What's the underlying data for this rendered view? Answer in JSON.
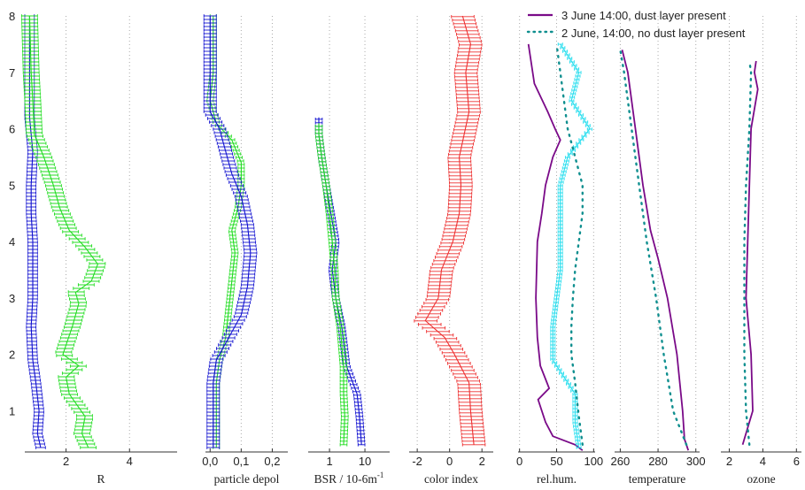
{
  "colors": {
    "blue": "#1010d0",
    "green": "#22dd22",
    "red": "#ee3030",
    "cyan": "#22ddee",
    "purple": "#7a0a88",
    "teal": "#0f8f8f",
    "grid": "#aaaaaa"
  },
  "legend": {
    "series1_label": "3 June 14:00, dust layer present",
    "series2_label": "2 June, 14:00, no dust layer present"
  },
  "chart_data": {
    "type": "line",
    "shared_y_axis": {
      "ticks": [
        "8",
        "7",
        "6",
        "5",
        "4",
        "3",
        "2",
        "1"
      ]
    },
    "panels": [
      {
        "id": "R",
        "xlabel": "R",
        "xlim": [
          0.7,
          5.5
        ],
        "xticks": [
          2,
          4
        ],
        "xtick_labels": [
          "2",
          "4"
        ],
        "series": [
          {
            "color": "blue",
            "errorbars": true,
            "err": 0.15,
            "points": [
              [
                1.2,
                0.35
              ],
              [
                1.1,
                0.6
              ],
              [
                1.15,
                1.0
              ],
              [
                1.05,
                1.5
              ],
              [
                0.95,
                1.9
              ],
              [
                0.9,
                2.5
              ],
              [
                0.95,
                3.0
              ],
              [
                0.95,
                3.5
              ],
              [
                0.95,
                4.0
              ],
              [
                0.9,
                4.5
              ],
              [
                0.9,
                5.0
              ],
              [
                0.95,
                5.6
              ],
              [
                0.85,
                6.2
              ],
              [
                0.85,
                7.0
              ],
              [
                0.85,
                8.0
              ]
            ]
          },
          {
            "color": "green",
            "errorbars": true,
            "err": 0.25,
            "points": [
              [
                2.7,
                0.35
              ],
              [
                2.5,
                0.6
              ],
              [
                2.6,
                0.9
              ],
              [
                2.1,
                1.3
              ],
              [
                2.0,
                1.6
              ],
              [
                2.4,
                1.8
              ],
              [
                1.9,
                2.0
              ],
              [
                2.2,
                2.5
              ],
              [
                2.4,
                2.9
              ],
              [
                2.3,
                3.1
              ],
              [
                2.8,
                3.3
              ],
              [
                3.0,
                3.6
              ],
              [
                2.6,
                3.9
              ],
              [
                2.1,
                4.2
              ],
              [
                1.8,
                4.6
              ],
              [
                1.6,
                5.0
              ],
              [
                1.3,
                5.5
              ],
              [
                1.0,
                5.9
              ],
              [
                0.95,
                6.5
              ],
              [
                0.9,
                7.0
              ],
              [
                0.85,
                8.0
              ]
            ]
          }
        ]
      },
      {
        "id": "particle-depol",
        "xlabel": "particle depol",
        "xlim": [
          -0.015,
          0.25
        ],
        "xticks": [
          0.0,
          0.1,
          0.2
        ],
        "xtick_labels": [
          "0,0",
          "0,1",
          "0,2"
        ],
        "series": [
          {
            "color": "green",
            "errorbars": true,
            "err": 0.01,
            "points": [
              [
                0.02,
                0.35
              ],
              [
                0.02,
                0.8
              ],
              [
                0.02,
                1.5
              ],
              [
                0.03,
                1.9
              ],
              [
                0.05,
                2.3
              ],
              [
                0.06,
                2.8
              ],
              [
                0.07,
                3.3
              ],
              [
                0.08,
                3.8
              ],
              [
                0.07,
                4.2
              ],
              [
                0.09,
                4.6
              ],
              [
                0.1,
                5.0
              ],
              [
                0.1,
                5.4
              ],
              [
                0.07,
                5.8
              ],
              [
                0.02,
                6.1
              ],
              [
                0.0,
                6.5
              ],
              [
                0.01,
                7.0
              ],
              [
                0.01,
                8.0
              ]
            ]
          },
          {
            "color": "blue",
            "errorbars": true,
            "err": 0.02,
            "points": [
              [
                0.01,
                0.35
              ],
              [
                0.01,
                0.8
              ],
              [
                0.01,
                1.5
              ],
              [
                0.02,
                1.9
              ],
              [
                0.05,
                2.2
              ],
              [
                0.1,
                2.7
              ],
              [
                0.12,
                3.2
              ],
              [
                0.13,
                3.8
              ],
              [
                0.12,
                4.3
              ],
              [
                0.1,
                4.8
              ],
              [
                0.07,
                5.2
              ],
              [
                0.05,
                5.6
              ],
              [
                0.03,
                6.0
              ],
              [
                0.0,
                6.3
              ],
              [
                0.0,
                7.0
              ],
              [
                0.0,
                8.0
              ]
            ]
          }
        ]
      },
      {
        "id": "BSR",
        "xlabel": "BSR / 10-6m",
        "xlabel_sup": "-1",
        "xlim": [
          0.25,
          50
        ],
        "xscale": "log",
        "xticks": [
          1,
          10
        ],
        "xtick_labels": [
          "1",
          "10"
        ],
        "series": [
          {
            "color": "blue",
            "errorbars": true,
            "err": 0.06,
            "points": [
              [
                8,
                0.4
              ],
              [
                7,
                0.9
              ],
              [
                6,
                1.3
              ],
              [
                3,
                1.8
              ],
              [
                2.2,
                2.5
              ],
              [
                1.5,
                3.0
              ],
              [
                1.2,
                3.5
              ],
              [
                1.5,
                4.0
              ],
              [
                1.1,
                4.5
              ],
              [
                0.8,
                5.0
              ],
              [
                0.6,
                5.5
              ],
              [
                0.5,
                5.9
              ],
              [
                0.5,
                6.2
              ]
            ]
          },
          {
            "color": "green",
            "errorbars": true,
            "err": 0.06,
            "points": [
              [
                2.5,
                0.4
              ],
              [
                2.7,
                0.9
              ],
              [
                2.5,
                1.3
              ],
              [
                2.5,
                1.8
              ],
              [
                2.0,
                2.5
              ],
              [
                1.5,
                3.0
              ],
              [
                1.4,
                3.5
              ],
              [
                1.2,
                4.0
              ],
              [
                1.0,
                4.5
              ],
              [
                0.8,
                5.0
              ],
              [
                0.6,
                5.5
              ],
              [
                0.5,
                5.9
              ],
              [
                0.5,
                6.1
              ]
            ]
          }
        ]
      },
      {
        "id": "color-index",
        "xlabel": "color index",
        "xlim": [
          -2.5,
          2.7
        ],
        "xticks": [
          -2,
          0,
          2
        ],
        "xtick_labels": [
          "-2",
          "0",
          "2"
        ],
        "series": [
          {
            "color": "red",
            "errorbars": true,
            "err": 0.7,
            "points": [
              [
                1.5,
                0.4
              ],
              [
                1.3,
                1.0
              ],
              [
                1.2,
                1.5
              ],
              [
                0.3,
                2.0
              ],
              [
                -0.3,
                2.3
              ],
              [
                -1.5,
                2.6
              ],
              [
                -0.7,
                3.0
              ],
              [
                -0.5,
                3.5
              ],
              [
                0.2,
                4.0
              ],
              [
                0.6,
                4.5
              ],
              [
                0.7,
                5.0
              ],
              [
                0.6,
                5.5
              ],
              [
                0.9,
                5.9
              ],
              [
                1.2,
                6.3
              ],
              [
                1.0,
                7.0
              ],
              [
                1.3,
                7.5
              ],
              [
                0.8,
                8.0
              ]
            ]
          }
        ]
      },
      {
        "id": "rel-hum",
        "xlabel": "rel.hum.",
        "xlim": [
          -2,
          102
        ],
        "xticks": [
          0,
          50,
          100
        ],
        "xtick_labels": [
          "0",
          "50",
          "100"
        ],
        "series": [
          {
            "color": "purple",
            "points": [
              [
                85,
                0.3
              ],
              [
                75,
                0.4
              ],
              [
                45,
                0.55
              ],
              [
                35,
                0.8
              ],
              [
                25,
                1.2
              ],
              [
                40,
                1.4
              ],
              [
                28,
                1.8
              ],
              [
                24,
                2.3
              ],
              [
                22,
                3.0
              ],
              [
                24,
                4.0
              ],
              [
                30,
                4.5
              ],
              [
                35,
                5.0
              ],
              [
                45,
                5.5
              ],
              [
                55,
                5.8
              ],
              [
                48,
                6.0
              ],
              [
                38,
                6.3
              ],
              [
                20,
                6.8
              ],
              [
                12,
                7.5
              ]
            ]
          },
          {
            "color": "cyan",
            "errorbars": true,
            "err": 3,
            "points": [
              [
                80,
                0.35
              ],
              [
                75,
                0.8
              ],
              [
                75,
                1.3
              ],
              [
                45,
                1.9
              ],
              [
                45,
                2.5
              ],
              [
                50,
                3.0
              ],
              [
                55,
                3.5
              ],
              [
                55,
                4.0
              ],
              [
                55,
                4.5
              ],
              [
                55,
                5.0
              ],
              [
                65,
                5.5
              ],
              [
                95,
                6.0
              ],
              [
                70,
                6.5
              ],
              [
                80,
                7.0
              ],
              [
                55,
                7.5
              ]
            ]
          },
          {
            "color": "teal",
            "dotted": true,
            "points": [
              [
                85,
                0.4
              ],
              [
                80,
                0.9
              ],
              [
                75,
                1.5
              ],
              [
                70,
                2.0
              ],
              [
                70,
                2.5
              ],
              [
                72,
                3.0
              ],
              [
                75,
                3.5
              ],
              [
                80,
                4.0
              ],
              [
                85,
                4.5
              ],
              [
                85,
                5.0
              ],
              [
                75,
                5.5
              ],
              [
                65,
                6.0
              ],
              [
                55,
                7.0
              ],
              [
                50,
                7.5
              ]
            ]
          }
        ]
      },
      {
        "id": "temperature",
        "xlabel": "temperature",
        "xlim": [
          257,
          302
        ],
        "xticks": [
          260,
          280,
          300
        ],
        "xtick_labels": [
          "260",
          "280",
          "300"
        ],
        "series": [
          {
            "color": "purple",
            "points": [
              [
                296,
                0.3
              ],
              [
                294,
                0.5
              ],
              [
                293,
                1.0
              ],
              [
                290,
                2.0
              ],
              [
                285,
                3.0
              ],
              [
                280,
                3.7
              ],
              [
                276,
                4.2
              ],
              [
                272,
                5.0
              ],
              [
                268,
                6.0
              ],
              [
                264,
                7.0
              ],
              [
                261,
                7.4
              ]
            ]
          },
          {
            "color": "teal",
            "dotted": true,
            "points": [
              [
                295,
                0.4
              ],
              [
                288,
                1.0
              ],
              [
                283,
                2.0
              ],
              [
                279,
                3.0
              ],
              [
                274,
                4.0
              ],
              [
                270,
                5.0
              ],
              [
                266,
                6.0
              ],
              [
                262,
                7.0
              ],
              [
                260,
                7.4
              ]
            ]
          }
        ]
      },
      {
        "id": "ozone",
        "xlabel": "ozone",
        "xlim": [
          1.5,
          6.3
        ],
        "xticks": [
          2,
          4,
          6
        ],
        "xtick_labels": [
          "2",
          "4",
          "6"
        ],
        "series": [
          {
            "color": "purple",
            "points": [
              [
                2.8,
                0.4
              ],
              [
                3.4,
                1.0
              ],
              [
                3.3,
                2.0
              ],
              [
                3.0,
                3.0
              ],
              [
                3.1,
                4.0
              ],
              [
                3.2,
                5.0
              ],
              [
                3.3,
                6.0
              ],
              [
                3.7,
                6.7
              ],
              [
                3.5,
                7.0
              ],
              [
                3.6,
                7.2
              ]
            ]
          },
          {
            "color": "teal",
            "dotted": true,
            "points": [
              [
                3.2,
                0.4
              ],
              [
                3.0,
                1.0
              ],
              [
                2.9,
                2.0
              ],
              [
                2.9,
                3.0
              ],
              [
                2.9,
                4.0
              ],
              [
                3.0,
                5.0
              ],
              [
                3.2,
                6.0
              ],
              [
                3.3,
                7.0
              ],
              [
                3.2,
                7.2
              ]
            ]
          }
        ]
      }
    ]
  }
}
